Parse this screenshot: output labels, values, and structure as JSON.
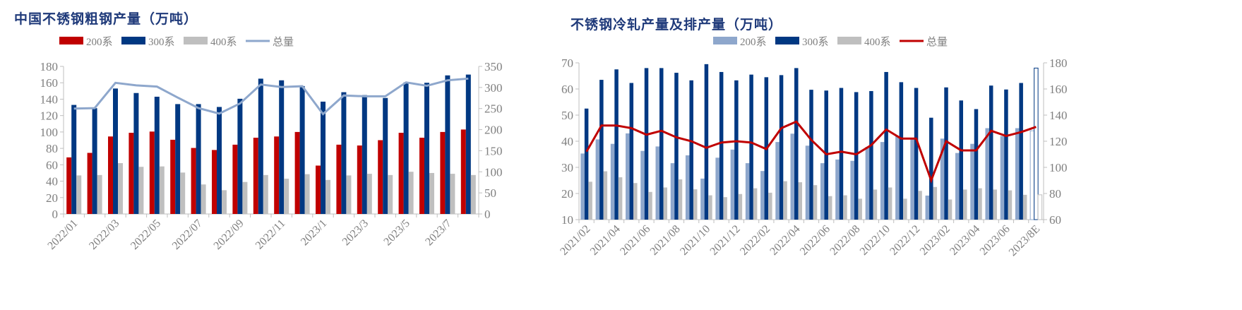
{
  "chart_data": [
    {
      "type": "bar+line",
      "title": "中国不锈钢粗钢产量（万吨）",
      "categories": [
        "2022/01",
        "2022/02",
        "2022/03",
        "2022/04",
        "2022/05",
        "2022/06",
        "2022/07",
        "2022/08",
        "2022/09",
        "2022/10",
        "2022/11",
        "2022/12",
        "2023/1",
        "2023/2",
        "2023/3",
        "2023/4",
        "2023/5",
        "2023/6",
        "2023/7",
        "2023/8"
      ],
      "tick_labels": [
        "2022/01",
        "2022/03",
        "2022/05",
        "2022/07",
        "2022/09",
        "2022/11",
        "2023/1",
        "2023/3",
        "2023/5",
        "2023/7"
      ],
      "ylim": [
        0,
        180
      ],
      "y_ticks": [
        0,
        20,
        40,
        60,
        80,
        100,
        120,
        140,
        160,
        180
      ],
      "y2lim": [
        0,
        350
      ],
      "y2_ticks": [
        0,
        50,
        100,
        150,
        200,
        250,
        300,
        350
      ],
      "legend_position": "top",
      "series": [
        {
          "name": "200系",
          "type": "bar",
          "axis": "left",
          "color": "#c00000",
          "values": [
            69,
            74.5,
            94.5,
            99,
            100.5,
            90.5,
            80.5,
            78,
            84.5,
            93,
            94.5,
            100,
            59,
            84.5,
            83.5,
            90,
            99,
            93,
            100,
            103
          ]
        },
        {
          "name": "300系",
          "type": "bar",
          "axis": "left",
          "color": "#003882",
          "values": [
            133,
            129,
            153,
            147.5,
            143,
            134,
            134,
            130.5,
            140.5,
            165,
            163,
            156,
            137,
            148.5,
            145,
            141.5,
            160.5,
            160,
            169,
            170
          ]
        },
        {
          "name": "400系",
          "type": "bar",
          "axis": "left",
          "color": "#bfbfbf",
          "values": [
            47,
            47.5,
            62,
            57.5,
            58,
            50.5,
            36,
            29,
            39,
            47.5,
            43,
            48.5,
            41.5,
            47,
            49,
            47.5,
            51.5,
            50,
            49,
            47.5
          ]
        },
        {
          "name": "总量",
          "type": "line",
          "axis": "right",
          "color": "#8ea7cc",
          "values": [
            250,
            251,
            311,
            305,
            302,
            276,
            251,
            238,
            262,
            307,
            301,
            303,
            237,
            281,
            279,
            279,
            312,
            304,
            317,
            321
          ]
        }
      ]
    },
    {
      "type": "bar+line",
      "title": "不锈钢冷轧产量及排产量（万吨）",
      "categories": [
        "2021/02",
        "2021/03",
        "2021/04",
        "2021/05",
        "2021/06",
        "2021/07",
        "2021/08",
        "2021/09",
        "2021/10",
        "2021/11",
        "2021/12",
        "2022/01",
        "2022/02",
        "2022/03",
        "2022/04",
        "2022/05",
        "2022/06",
        "2022/07",
        "2022/08",
        "2022/09",
        "2022/10",
        "2022/11",
        "2022/12",
        "2023/01",
        "2023/02",
        "2023/03",
        "2023/04",
        "2023/05",
        "2023/06",
        "2023/07",
        "2023/8E"
      ],
      "tick_labels": [
        "2021/02",
        "2021/04",
        "2021/06",
        "2021/08",
        "2021/10",
        "2021/12",
        "2022/02",
        "2022/04",
        "2022/06",
        "2022/08",
        "2022/10",
        "2022/12",
        "2023/02",
        "2023/04",
        "2023/06",
        "2023/8E"
      ],
      "ylim": [
        10,
        70
      ],
      "y_ticks": [
        10,
        20,
        30,
        40,
        50,
        60,
        70
      ],
      "y2lim": [
        60,
        180
      ],
      "y2_ticks": [
        60,
        80,
        100,
        120,
        140,
        160,
        180
      ],
      "legend_position": "top",
      "last_is_estimate": true,
      "series": [
        {
          "name": "200系",
          "type": "bar",
          "axis": "left",
          "color": "#8ea7cc",
          "values": [
            35.3,
            40.7,
            39,
            43,
            36.3,
            38,
            31.6,
            34.6,
            25.7,
            33.7,
            36.8,
            31.6,
            28.6,
            39.7,
            42.9,
            38.3,
            31.6,
            33,
            32.5,
            37.8,
            39.7,
            42,
            41,
            19.2,
            41,
            35.5,
            39,
            45,
            42,
            45,
            44
          ]
        },
        {
          "name": "300系",
          "type": "bar",
          "axis": "left",
          "color": "#003882",
          "values": [
            52.5,
            63.5,
            67.5,
            62.3,
            68,
            68,
            66.2,
            63.3,
            69.5,
            66.5,
            63.3,
            65.5,
            64.5,
            65.3,
            68,
            59.7,
            59.4,
            60.4,
            58.8,
            59.2,
            66.5,
            62.6,
            60.4,
            49,
            60.6,
            55.6,
            52.3,
            61.3,
            59.8,
            62.3,
            68
          ]
        },
        {
          "name": "400系",
          "type": "bar",
          "axis": "left",
          "color": "#bfbfbf",
          "values": [
            24.5,
            28.5,
            26.2,
            24,
            20.6,
            22.3,
            25.4,
            21.6,
            19.3,
            18.6,
            19.8,
            22,
            20.3,
            24.7,
            24.3,
            23.2,
            19,
            19.3,
            18,
            21.5,
            22.3,
            18,
            21,
            22.5,
            17.7,
            21.5,
            22,
            21.5,
            21.2,
            19.5,
            19.5
          ]
        },
        {
          "name": "总量",
          "type": "line",
          "axis": "right",
          "color": "#c00000",
          "values": [
            112,
            132,
            132,
            130,
            125,
            128,
            123,
            120,
            115,
            119,
            120,
            119,
            114,
            130,
            135,
            121,
            110,
            112,
            110,
            117,
            129,
            122,
            122,
            90,
            120,
            113,
            113,
            128,
            124,
            127,
            131
          ]
        }
      ]
    }
  ]
}
